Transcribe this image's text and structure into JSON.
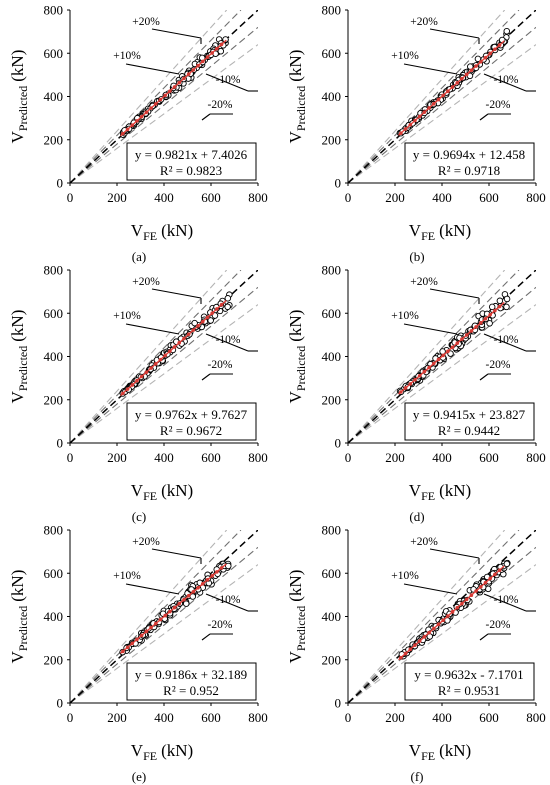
{
  "chart_data": [
    {
      "panel": "(a)",
      "type": "scatter",
      "xlabel": {
        "main": "V",
        "sub": "FE",
        "unit": "(kN)"
      },
      "ylabel": {
        "main": "V",
        "sub": "Predicted",
        "unit": "(kN)"
      },
      "xlim": [
        0,
        800
      ],
      "ylim": [
        0,
        800
      ],
      "xticks": [
        0,
        200,
        400,
        600,
        800
      ],
      "yticks": [
        0,
        200,
        400,
        600,
        800
      ],
      "fit": {
        "slope": 0.9821,
        "intercept": 7.4026,
        "equation": "y = 0.9821x + 7.4026",
        "r2": "R² = 0.9823"
      },
      "reference_lines": [
        "+20%",
        "+10%",
        "-10%",
        "-20%"
      ],
      "spread": 0.06
    },
    {
      "panel": "(b)",
      "type": "scatter",
      "xlabel": {
        "main": "V",
        "sub": "FE",
        "unit": "(kN)"
      },
      "ylabel": {
        "main": "V",
        "sub": "Predicted",
        "unit": "(kN)"
      },
      "xlim": [
        0,
        800
      ],
      "ylim": [
        0,
        800
      ],
      "xticks": [
        0,
        200,
        400,
        600,
        800
      ],
      "yticks": [
        0,
        200,
        400,
        600,
        800
      ],
      "fit": {
        "slope": 0.9694,
        "intercept": 12.458,
        "equation": "y = 0.9694x + 12.458",
        "r2": "R² = 0.9718"
      },
      "reference_lines": [
        "+20%",
        "+10%",
        "-10%",
        "-20%"
      ],
      "spread": 0.07
    },
    {
      "panel": "(c)",
      "type": "scatter",
      "xlabel": {
        "main": "V",
        "sub": "FE",
        "unit": "(kN)"
      },
      "ylabel": {
        "main": "V",
        "sub": "Predicted",
        "unit": "(kN)"
      },
      "xlim": [
        0,
        800
      ],
      "ylim": [
        0,
        800
      ],
      "xticks": [
        0,
        200,
        400,
        600,
        800
      ],
      "yticks": [
        0,
        200,
        400,
        600,
        800
      ],
      "fit": {
        "slope": 0.9762,
        "intercept": 9.7627,
        "equation": "y = 0.9762x + 9.7627",
        "r2": "R² = 0.9672"
      },
      "reference_lines": [
        "+20%",
        "+10%",
        "-10%",
        "-20%"
      ],
      "spread": 0.075
    },
    {
      "panel": "(d)",
      "type": "scatter",
      "xlabel": {
        "main": "V",
        "sub": "FE",
        "unit": "(kN)"
      },
      "ylabel": {
        "main": "V",
        "sub": "Predicted",
        "unit": "(kN)"
      },
      "xlim": [
        0,
        800
      ],
      "ylim": [
        0,
        800
      ],
      "xticks": [
        0,
        200,
        400,
        600,
        800
      ],
      "yticks": [
        0,
        200,
        400,
        600,
        800
      ],
      "fit": {
        "slope": 0.9415,
        "intercept": 23.827,
        "equation": "y = 0.9415x + 23.827",
        "r2": "R² = 0.9442"
      },
      "reference_lines": [
        "+20%",
        "+10%",
        "-10%",
        "-20%"
      ],
      "spread": 0.09
    },
    {
      "panel": "(e)",
      "type": "scatter",
      "xlabel": {
        "main": "V",
        "sub": "FE",
        "unit": "(kN)"
      },
      "ylabel": {
        "main": "V",
        "sub": "Predicted",
        "unit": "(kN)"
      },
      "xlim": [
        0,
        800
      ],
      "ylim": [
        0,
        800
      ],
      "xticks": [
        0,
        200,
        400,
        600,
        800
      ],
      "yticks": [
        0,
        200,
        400,
        600,
        800
      ],
      "fit": {
        "slope": 0.9186,
        "intercept": 32.189,
        "equation": "y = 0.9186x + 32.189",
        "r2": "R² = 0.952"
      },
      "reference_lines": [
        "+20%",
        "+10%",
        "-10%",
        "-20%"
      ],
      "spread": 0.085
    },
    {
      "panel": "(f)",
      "type": "scatter",
      "xlabel": {
        "main": "V",
        "sub": "FE",
        "unit": "(kN)"
      },
      "ylabel": {
        "main": "V",
        "sub": "Predicted",
        "unit": "(kN)"
      },
      "xlim": [
        0,
        800
      ],
      "ylim": [
        0,
        800
      ],
      "xticks": [
        0,
        200,
        400,
        600,
        800
      ],
      "yticks": [
        0,
        200,
        400,
        600,
        800
      ],
      "fit": {
        "slope": 0.9632,
        "intercept": -7.1701,
        "equation": "y = 0.9632x - 7.1701",
        "r2": "R² = 0.9531"
      },
      "reference_lines": [
        "+20%",
        "+10%",
        "-10%",
        "-20%"
      ],
      "spread": 0.085
    }
  ],
  "colors": {
    "axis": "#000000",
    "identity_line": "#000000",
    "ten_percent_lines": "#707070",
    "twenty_percent_lines": "#b4b4b4",
    "marker_edge": "#000000",
    "marker_fill": "#ffffff",
    "fit_line": "#e8413c",
    "fit_marker": "#d63a34"
  }
}
